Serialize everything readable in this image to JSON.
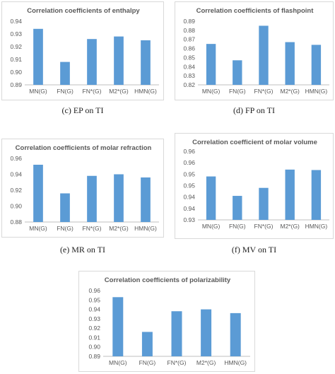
{
  "captions": {
    "c": "(c) EP on TI",
    "d": "(d) FP on TI",
    "e": "(e) MR on TI",
    "f": "(f) MV on TI"
  },
  "chart_data": [
    {
      "type": "bar",
      "title": "Correlation coefficients of enthalpy",
      "categories": [
        "MN(G)",
        "FN(G)",
        "FN*(G)",
        "M2*(G)",
        "HMN(G)"
      ],
      "values": [
        0.934,
        0.908,
        0.926,
        0.928,
        0.925
      ],
      "ylim": [
        0.89,
        0.94
      ],
      "yticks": [
        "0.89",
        "0.90",
        "0.91",
        "0.92",
        "0.93",
        "0.94"
      ],
      "bar_color": "#5b9bd5",
      "grid": false
    },
    {
      "type": "bar",
      "title": "Correlation coefficients of flashpoint",
      "categories": [
        "MN(G)",
        "FN(G)",
        "FN*(G)",
        "M2*(G)",
        "HMN(G)"
      ],
      "values": [
        0.865,
        0.847,
        0.885,
        0.867,
        0.864
      ],
      "ylim": [
        0.82,
        0.89
      ],
      "yticks": [
        "0.82",
        "0.83",
        "0.84",
        "0.85",
        "0.86",
        "0.87",
        "0.88",
        "0.89"
      ],
      "bar_color": "#5b9bd5",
      "grid": false
    },
    {
      "type": "bar",
      "title": "Correlation coefficients of molar refraction",
      "categories": [
        "MN(G)",
        "FN(G)",
        "FN*(G)",
        "M2*(G)",
        "HMN(G)"
      ],
      "values": [
        0.952,
        0.916,
        0.938,
        0.94,
        0.936
      ],
      "ylim": [
        0.88,
        0.96
      ],
      "yticks": [
        "0.88",
        "0.90",
        "0.92",
        "0.94",
        "0.96"
      ],
      "bar_color": "#5b9bd5",
      "grid": false
    },
    {
      "type": "bar",
      "title": "Correlation coefficient of molar volume",
      "categories": [
        "MN(G)",
        "FN(G)",
        "FN*(G)",
        "M2*(G)",
        "HMN(G)"
      ],
      "values": [
        0.949,
        0.9405,
        0.944,
        0.952,
        0.9518
      ],
      "ylim": [
        0.93,
        0.96
      ],
      "yticks": [
        "0.93",
        "0.94",
        "0.94",
        "0.95",
        "0.95",
        "0.96",
        "0.96"
      ],
      "bar_color": "#5b9bd5",
      "grid": false
    },
    {
      "type": "bar",
      "title": "Correlation coefficients of polarizability",
      "categories": [
        "MN(G)",
        "FN(G)",
        "FN*(G)",
        "M2*(G)",
        "HMN(G)"
      ],
      "values": [
        0.953,
        0.916,
        0.938,
        0.94,
        0.936
      ],
      "ylim": [
        0.89,
        0.96
      ],
      "yticks": [
        "0.89",
        "0.90",
        "0.91",
        "0.92",
        "0.93",
        "0.94",
        "0.95",
        "0.96"
      ],
      "bar_color": "#5b9bd5",
      "grid": false
    }
  ]
}
